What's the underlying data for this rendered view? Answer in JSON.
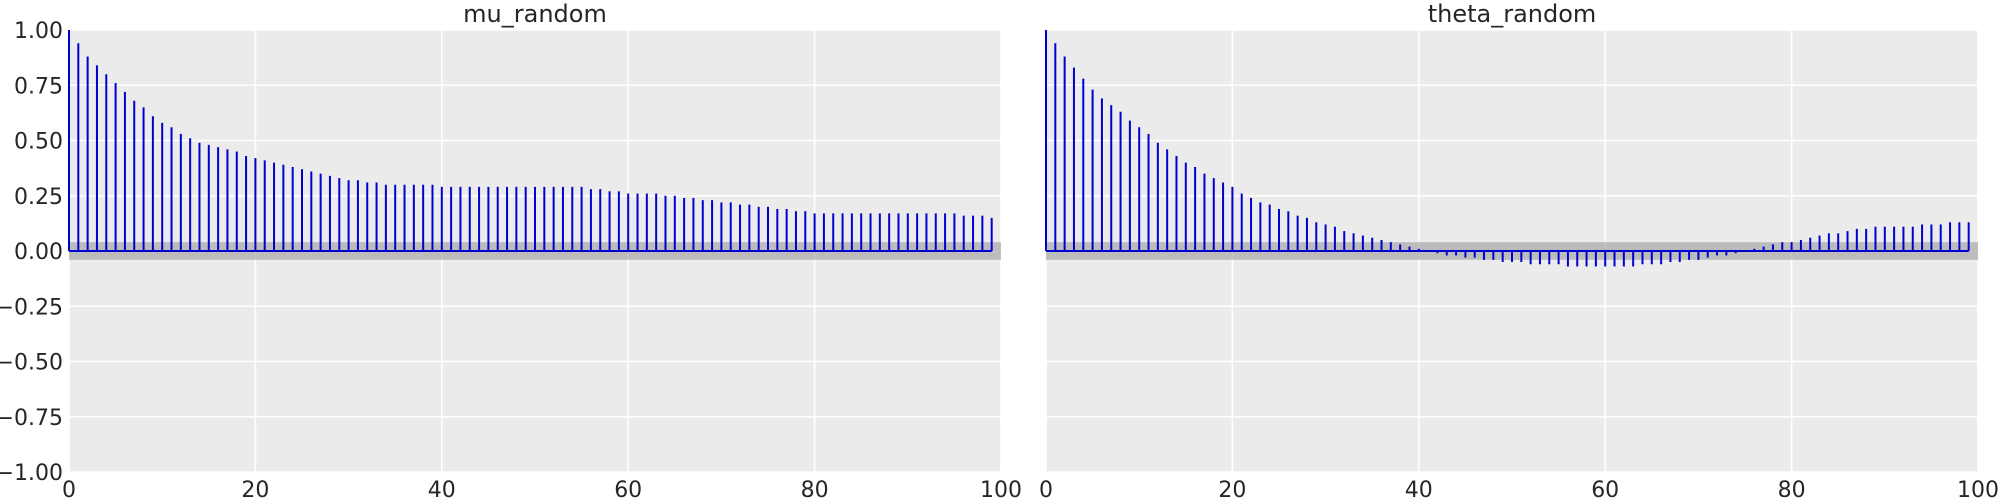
{
  "chart_data": [
    {
      "type": "autocorrelation",
      "title": "mu_random",
      "xlim": [
        0,
        100
      ],
      "ylim": [
        -1,
        1
      ],
      "x_ticks": [
        "0",
        "20",
        "40",
        "60",
        "80",
        "100"
      ],
      "y_ticks": [
        "1.00",
        "0.75",
        "0.50",
        "0.25",
        "0.00",
        "−0.25",
        "−0.50",
        "−0.75",
        "−1.00"
      ],
      "confidence_band": [
        -0.04,
        0.04
      ],
      "lags": [
        0,
        1,
        2,
        3,
        4,
        5,
        6,
        7,
        8,
        9,
        10,
        11,
        12,
        13,
        14,
        15,
        16,
        17,
        18,
        19,
        20,
        21,
        22,
        23,
        24,
        25,
        26,
        27,
        28,
        29,
        30,
        31,
        32,
        33,
        34,
        35,
        36,
        37,
        38,
        39,
        40,
        41,
        42,
        43,
        44,
        45,
        46,
        47,
        48,
        49,
        50,
        51,
        52,
        53,
        54,
        55,
        56,
        57,
        58,
        59,
        60,
        61,
        62,
        63,
        64,
        65,
        66,
        67,
        68,
        69,
        70,
        71,
        72,
        73,
        74,
        75,
        76,
        77,
        78,
        79,
        80,
        81,
        82,
        83,
        84,
        85,
        86,
        87,
        88,
        89,
        90,
        91,
        92,
        93,
        94,
        95,
        96,
        97,
        98,
        99
      ],
      "values": [
        1.0,
        0.94,
        0.88,
        0.84,
        0.8,
        0.76,
        0.72,
        0.68,
        0.65,
        0.61,
        0.58,
        0.56,
        0.53,
        0.51,
        0.49,
        0.48,
        0.47,
        0.46,
        0.45,
        0.43,
        0.42,
        0.41,
        0.4,
        0.39,
        0.38,
        0.37,
        0.36,
        0.35,
        0.34,
        0.33,
        0.32,
        0.32,
        0.31,
        0.31,
        0.3,
        0.3,
        0.3,
        0.3,
        0.3,
        0.3,
        0.29,
        0.29,
        0.29,
        0.29,
        0.29,
        0.29,
        0.29,
        0.29,
        0.29,
        0.29,
        0.29,
        0.29,
        0.29,
        0.29,
        0.29,
        0.29,
        0.28,
        0.28,
        0.27,
        0.27,
        0.26,
        0.26,
        0.26,
        0.26,
        0.25,
        0.25,
        0.24,
        0.24,
        0.23,
        0.23,
        0.22,
        0.22,
        0.21,
        0.21,
        0.2,
        0.2,
        0.19,
        0.19,
        0.18,
        0.18,
        0.17,
        0.17,
        0.17,
        0.17,
        0.17,
        0.17,
        0.17,
        0.17,
        0.17,
        0.17,
        0.17,
        0.17,
        0.17,
        0.17,
        0.17,
        0.17,
        0.16,
        0.16,
        0.16,
        0.15
      ]
    },
    {
      "type": "autocorrelation",
      "title": "theta_random",
      "xlim": [
        0,
        100
      ],
      "ylim": [
        -1,
        1
      ],
      "x_ticks": [
        "0",
        "20",
        "40",
        "60",
        "80",
        "100"
      ],
      "confidence_band": [
        -0.04,
        0.04
      ],
      "lags": [
        0,
        1,
        2,
        3,
        4,
        5,
        6,
        7,
        8,
        9,
        10,
        11,
        12,
        13,
        14,
        15,
        16,
        17,
        18,
        19,
        20,
        21,
        22,
        23,
        24,
        25,
        26,
        27,
        28,
        29,
        30,
        31,
        32,
        33,
        34,
        35,
        36,
        37,
        38,
        39,
        40,
        41,
        42,
        43,
        44,
        45,
        46,
        47,
        48,
        49,
        50,
        51,
        52,
        53,
        54,
        55,
        56,
        57,
        58,
        59,
        60,
        61,
        62,
        63,
        64,
        65,
        66,
        67,
        68,
        69,
        70,
        71,
        72,
        73,
        74,
        75,
        76,
        77,
        78,
        79,
        80,
        81,
        82,
        83,
        84,
        85,
        86,
        87,
        88,
        89,
        90,
        91,
        92,
        93,
        94,
        95,
        96,
        97,
        98,
        99
      ],
      "values": [
        1.0,
        0.94,
        0.88,
        0.83,
        0.78,
        0.73,
        0.69,
        0.66,
        0.63,
        0.59,
        0.56,
        0.53,
        0.49,
        0.46,
        0.43,
        0.4,
        0.38,
        0.35,
        0.33,
        0.31,
        0.29,
        0.26,
        0.24,
        0.22,
        0.21,
        0.19,
        0.18,
        0.16,
        0.15,
        0.13,
        0.12,
        0.11,
        0.09,
        0.08,
        0.07,
        0.06,
        0.05,
        0.04,
        0.03,
        0.02,
        0.01,
        0.0,
        -0.01,
        -0.02,
        -0.02,
        -0.03,
        -0.03,
        -0.04,
        -0.04,
        -0.05,
        -0.05,
        -0.05,
        -0.06,
        -0.06,
        -0.06,
        -0.06,
        -0.07,
        -0.07,
        -0.07,
        -0.07,
        -0.07,
        -0.07,
        -0.07,
        -0.07,
        -0.06,
        -0.06,
        -0.06,
        -0.05,
        -0.05,
        -0.04,
        -0.04,
        -0.03,
        -0.02,
        -0.02,
        -0.01,
        0.0,
        0.01,
        0.02,
        0.03,
        0.04,
        0.04,
        0.05,
        0.06,
        0.07,
        0.08,
        0.08,
        0.09,
        0.1,
        0.1,
        0.11,
        0.11,
        0.11,
        0.11,
        0.11,
        0.12,
        0.12,
        0.12,
        0.13,
        0.13,
        0.13
      ]
    }
  ]
}
